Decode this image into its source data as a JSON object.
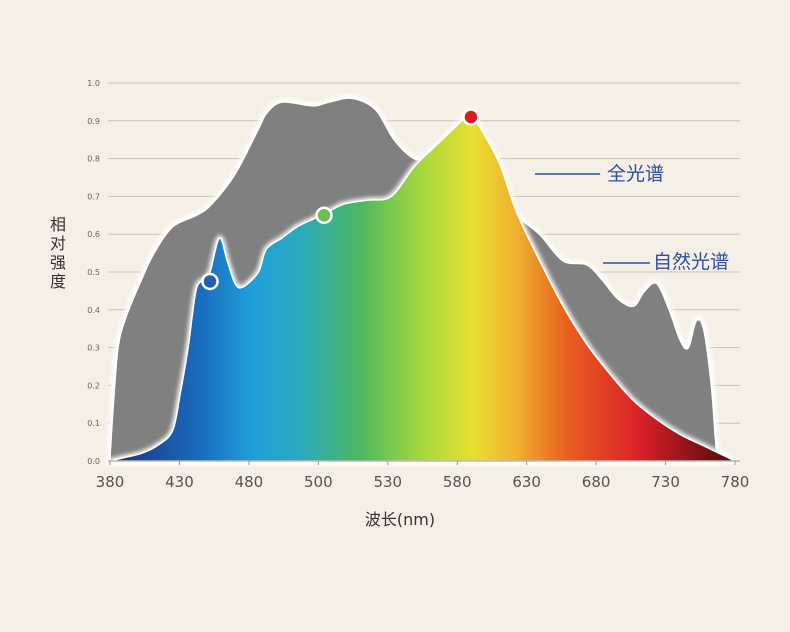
{
  "chart_data": {
    "type": "area",
    "xlabel": "波长(nm)",
    "ylabel": "相对强度",
    "xlim": [
      380,
      780
    ],
    "ylim": [
      0,
      1.0
    ],
    "x_ticks": [
      380,
      430,
      480,
      500,
      530,
      580,
      630,
      680,
      730,
      780
    ],
    "y_ticks": [
      0.0,
      0.1,
      0.2,
      0.3,
      0.4,
      0.5,
      0.6,
      0.7,
      0.8,
      0.9,
      1.0
    ],
    "grid": true,
    "series": [
      {
        "name": "自然光谱",
        "color": "#808080",
        "points": [
          [
            380,
            0.02
          ],
          [
            382,
            0.15
          ],
          [
            385,
            0.3
          ],
          [
            390,
            0.38
          ],
          [
            400,
            0.48
          ],
          [
            408,
            0.55
          ],
          [
            420,
            0.62
          ],
          [
            435,
            0.65
          ],
          [
            445,
            0.68
          ],
          [
            460,
            0.76
          ],
          [
            475,
            0.88
          ],
          [
            480,
            0.92
          ],
          [
            490,
            0.95
          ],
          [
            510,
            0.94
          ],
          [
            520,
            0.95
          ],
          [
            535,
            0.96
          ],
          [
            550,
            0.93
          ],
          [
            562,
            0.85
          ],
          [
            575,
            0.8
          ],
          [
            588,
            0.8
          ],
          [
            600,
            0.79
          ],
          [
            615,
            0.76
          ],
          [
            630,
            0.7
          ],
          [
            640,
            0.65
          ],
          [
            655,
            0.6
          ],
          [
            670,
            0.53
          ],
          [
            685,
            0.52
          ],
          [
            695,
            0.48
          ],
          [
            705,
            0.43
          ],
          [
            715,
            0.41
          ],
          [
            722,
            0.45
          ],
          [
            730,
            0.47
          ],
          [
            738,
            0.4
          ],
          [
            745,
            0.32
          ],
          [
            750,
            0.3
          ],
          [
            755,
            0.37
          ],
          [
            760,
            0.35
          ],
          [
            765,
            0.2
          ],
          [
            768,
            0.04
          ],
          [
            770,
            0.01
          ]
        ]
      },
      {
        "name": "全光谱",
        "color": "#e8a020",
        "points": [
          [
            380,
            0.0
          ],
          [
            390,
            0.01
          ],
          [
            400,
            0.02
          ],
          [
            410,
            0.04
          ],
          [
            420,
            0.08
          ],
          [
            425,
            0.18
          ],
          [
            430,
            0.3
          ],
          [
            435,
            0.45
          ],
          [
            440,
            0.48
          ],
          [
            444,
            0.5
          ],
          [
            450,
            0.59
          ],
          [
            455,
            0.53
          ],
          [
            460,
            0.47
          ],
          [
            465,
            0.46
          ],
          [
            475,
            0.5
          ],
          [
            480,
            0.56
          ],
          [
            490,
            0.59
          ],
          [
            500,
            0.62
          ],
          [
            510,
            0.64
          ],
          [
            520,
            0.66
          ],
          [
            530,
            0.68
          ],
          [
            545,
            0.69
          ],
          [
            560,
            0.7
          ],
          [
            575,
            0.78
          ],
          [
            590,
            0.84
          ],
          [
            605,
            0.9
          ],
          [
            610,
            0.92
          ],
          [
            620,
            0.86
          ],
          [
            630,
            0.78
          ],
          [
            640,
            0.66
          ],
          [
            655,
            0.53
          ],
          [
            670,
            0.41
          ],
          [
            685,
            0.31
          ],
          [
            700,
            0.23
          ],
          [
            715,
            0.16
          ],
          [
            730,
            0.11
          ],
          [
            745,
            0.07
          ],
          [
            760,
            0.04
          ],
          [
            770,
            0.02
          ],
          [
            780,
            0.0
          ]
        ]
      }
    ],
    "markers": [
      {
        "x": 444,
        "y": 0.475,
        "color": "#1f5fb0"
      },
      {
        "x": 517,
        "y": 0.65,
        "color": "#6cc050"
      },
      {
        "x": 611,
        "y": 0.91,
        "color": "#d91c24"
      }
    ]
  }
}
